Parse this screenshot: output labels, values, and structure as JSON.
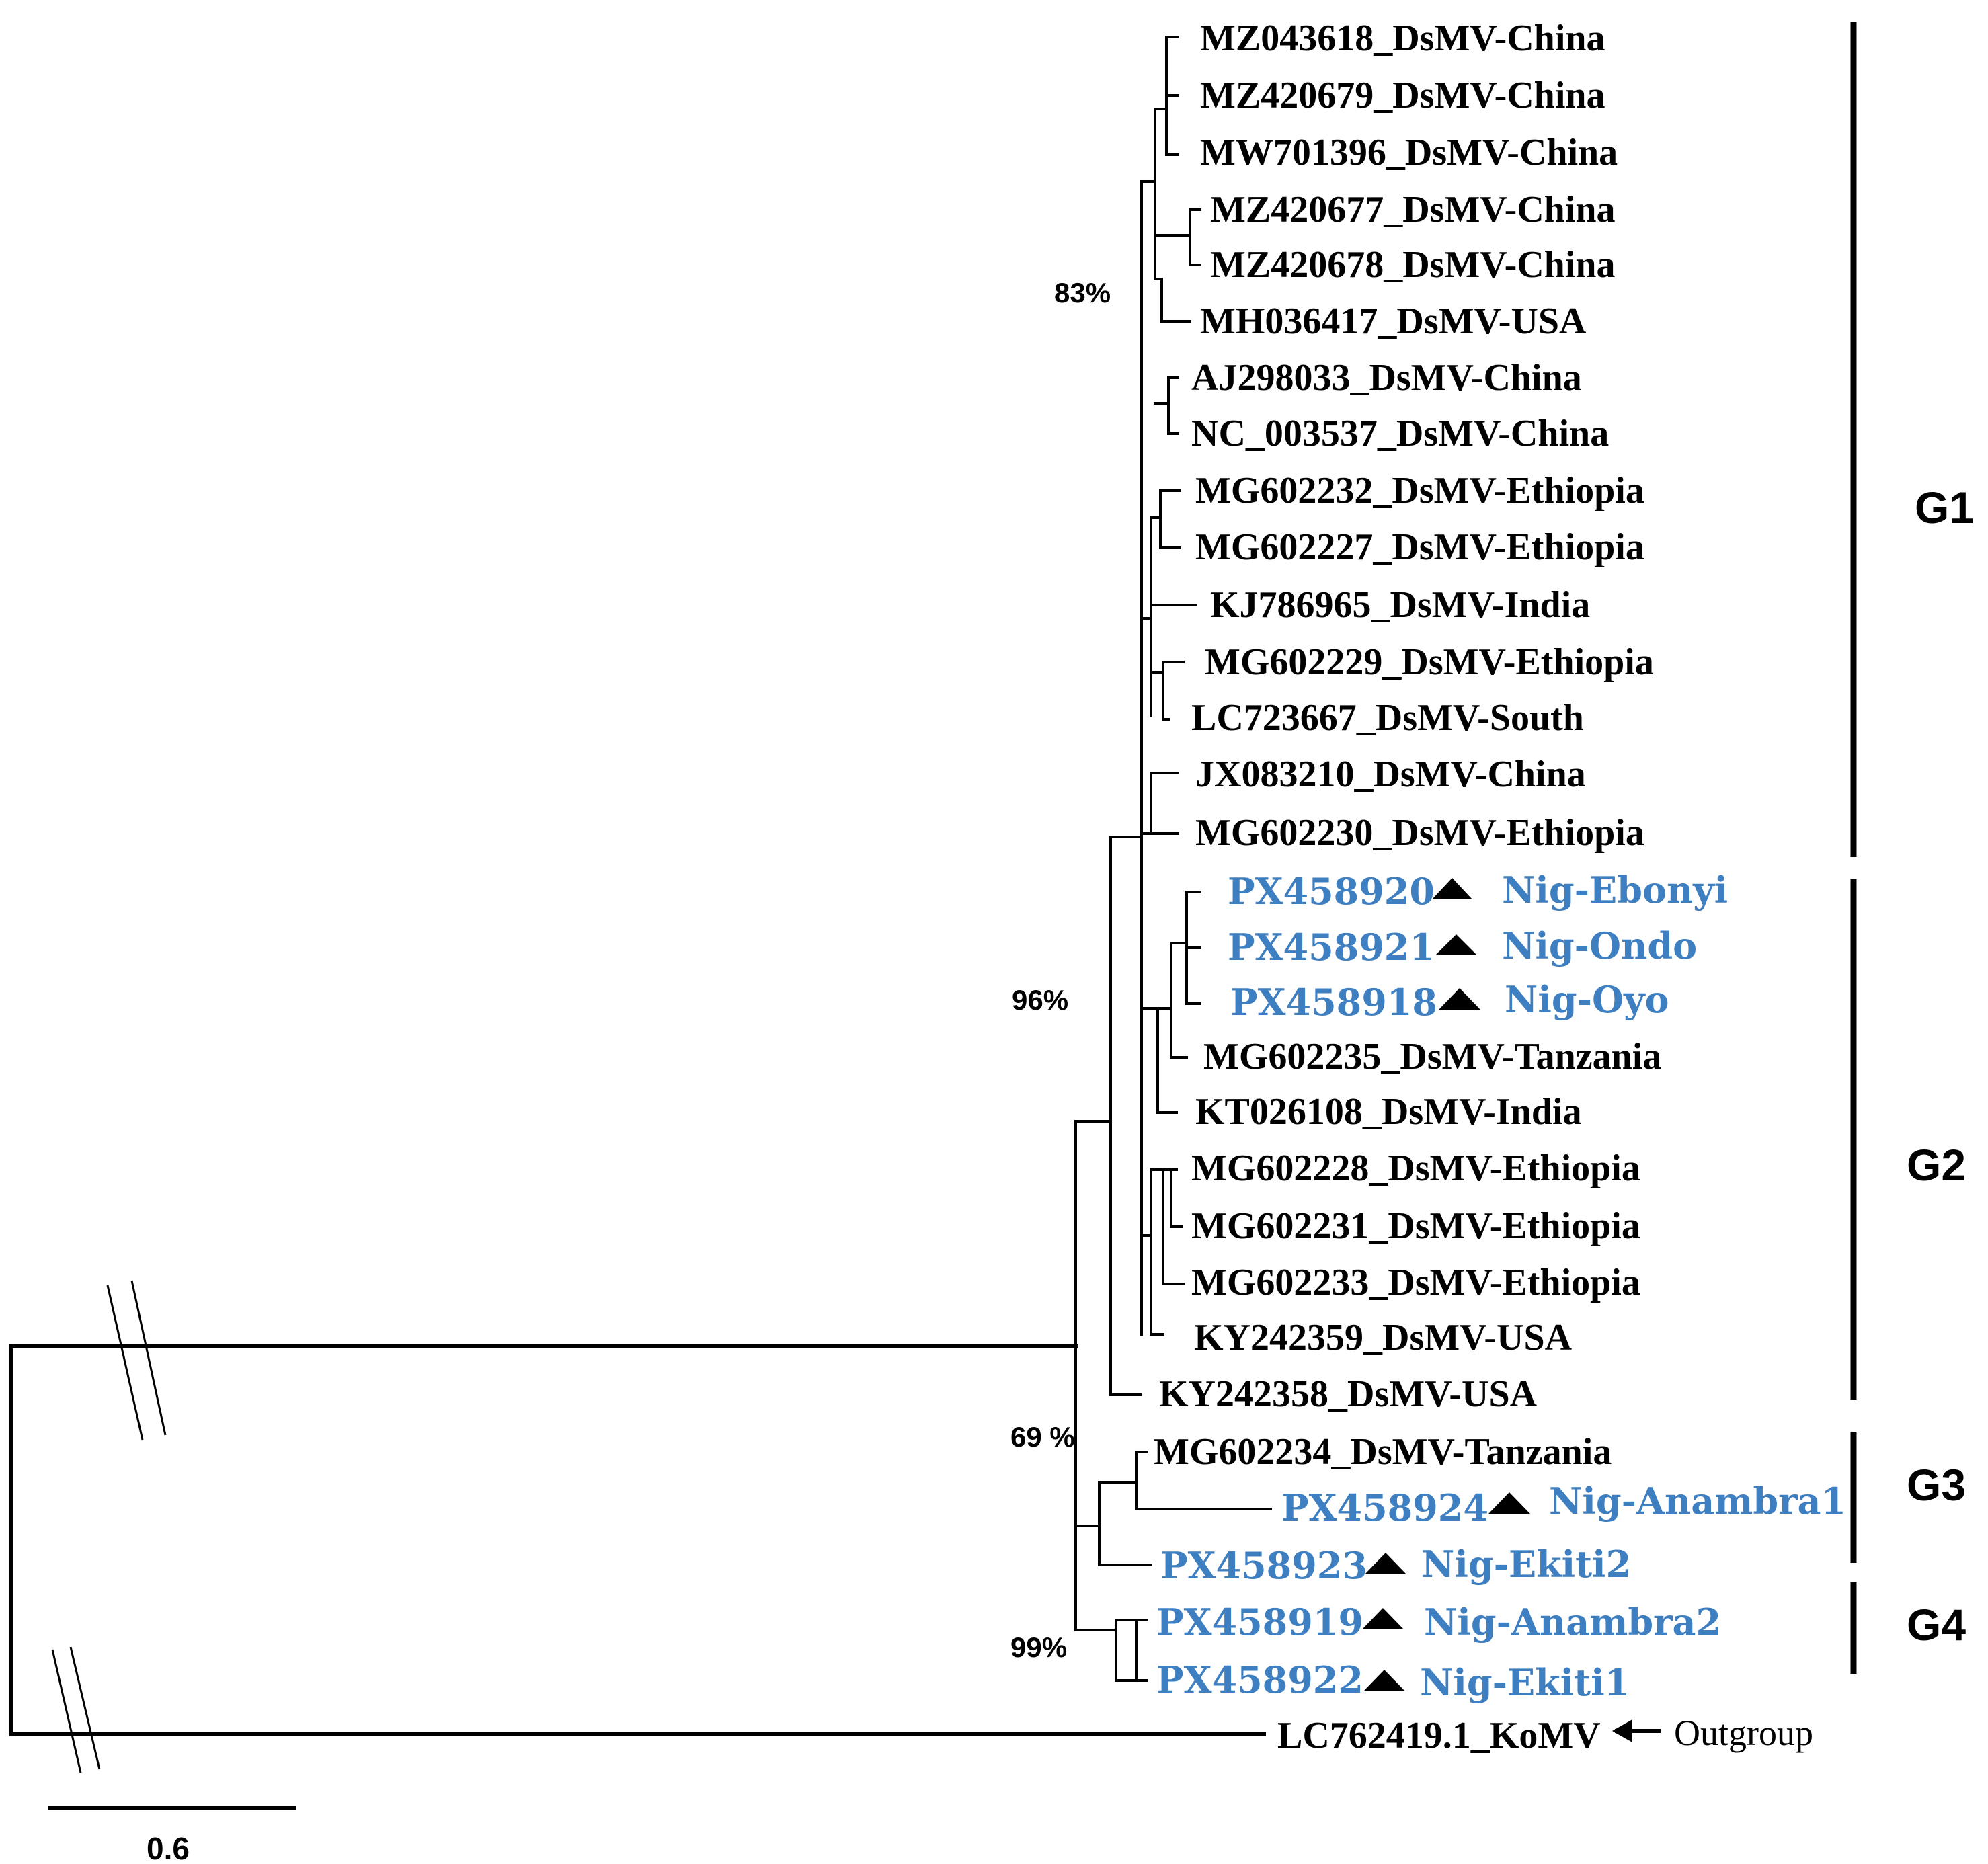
{
  "tree": {
    "taxa": [
      {
        "id": "MZ043618",
        "label": "MZ043618_DsMV-China"
      },
      {
        "id": "MZ420679",
        "label": "MZ420679_DsMV-China"
      },
      {
        "id": "MW701396",
        "label": "MW701396_DsMV-China"
      },
      {
        "id": "MZ420677",
        "label": "MZ420677_DsMV-China"
      },
      {
        "id": "MZ420678",
        "label": "MZ420678_DsMV-China"
      },
      {
        "id": "MH036417",
        "label": "MH036417_DsMV-USA"
      },
      {
        "id": "AJ298033",
        "label": "AJ298033_DsMV-China"
      },
      {
        "id": "NC_003537",
        "label": "NC_003537_DsMV-China"
      },
      {
        "id": "MG602232",
        "label": "MG602232_DsMV-Ethiopia"
      },
      {
        "id": "MG602227",
        "label": "MG602227_DsMV-Ethiopia"
      },
      {
        "id": "KJ786965",
        "label": "KJ786965_DsMV-India"
      },
      {
        "id": "MG602229",
        "label": "MG602229_DsMV-Ethiopia"
      },
      {
        "id": "LC723667",
        "label": "LC723667_DsMV-South"
      },
      {
        "id": "JX083210",
        "label": "JX083210_DsMV-China"
      },
      {
        "id": "MG602230",
        "label": "MG602230_DsMV-Ethiopia"
      },
      {
        "id": "PX458920",
        "accession": "PX458920",
        "region": "Nig-Ebonyi",
        "nigerian": true
      },
      {
        "id": "PX458921",
        "accession": "PX458921",
        "region": "Nig-Ondo",
        "nigerian": true
      },
      {
        "id": "PX458918",
        "accession": "PX458918",
        "region": "Nig-Oyo",
        "nigerian": true
      },
      {
        "id": "MG602235",
        "label": "MG602235_DsMV-Tanzania"
      },
      {
        "id": "KT026108",
        "label": "KT026108_DsMV-India"
      },
      {
        "id": "MG602228",
        "label": "MG602228_DsMV-Ethiopia"
      },
      {
        "id": "MG602231",
        "label": "MG602231_DsMV-Ethiopia"
      },
      {
        "id": "MG602233",
        "label": "MG602233_DsMV-Ethiopia"
      },
      {
        "id": "KY242359",
        "label": "KY242359_DsMV-USA"
      },
      {
        "id": "KY242358",
        "label": "KY242358_DsMV-USA"
      },
      {
        "id": "MG602234",
        "label": "MG602234_DsMV-Tanzania"
      },
      {
        "id": "PX458924",
        "accession": "PX458924",
        "region": "Nig-Anambra1",
        "nigerian": true
      },
      {
        "id": "PX458923",
        "accession": "PX458923",
        "region": "Nig-Ekiti2",
        "nigerian": true
      },
      {
        "id": "PX458919",
        "accession": "PX458919",
        "region": "Nig-Anambra2",
        "nigerian": true
      },
      {
        "id": "PX458922",
        "accession": "PX458922",
        "region": "Nig-Ekiti1",
        "nigerian": true
      },
      {
        "id": "LC762419",
        "label": "LC762419.1_KoMV",
        "outgroup": true
      }
    ],
    "bootstrap": [
      {
        "node": "china-clade",
        "label": "83%"
      },
      {
        "node": "g1-g2-clade",
        "label": "96%"
      },
      {
        "node": "g3-clade",
        "label": "69 %"
      },
      {
        "node": "g4-clade",
        "label": "99%"
      }
    ],
    "groups": [
      {
        "id": "G1",
        "label": "G1"
      },
      {
        "id": "G2",
        "label": "G2"
      },
      {
        "id": "G3",
        "label": "G3"
      },
      {
        "id": "G4",
        "label": "G4"
      }
    ],
    "outgroup_note": "Outgroup",
    "scale_bar": {
      "label": "0.6",
      "value": 0.6
    },
    "colors": {
      "nigerian": "#3e7fc1",
      "default": "#000000"
    }
  }
}
